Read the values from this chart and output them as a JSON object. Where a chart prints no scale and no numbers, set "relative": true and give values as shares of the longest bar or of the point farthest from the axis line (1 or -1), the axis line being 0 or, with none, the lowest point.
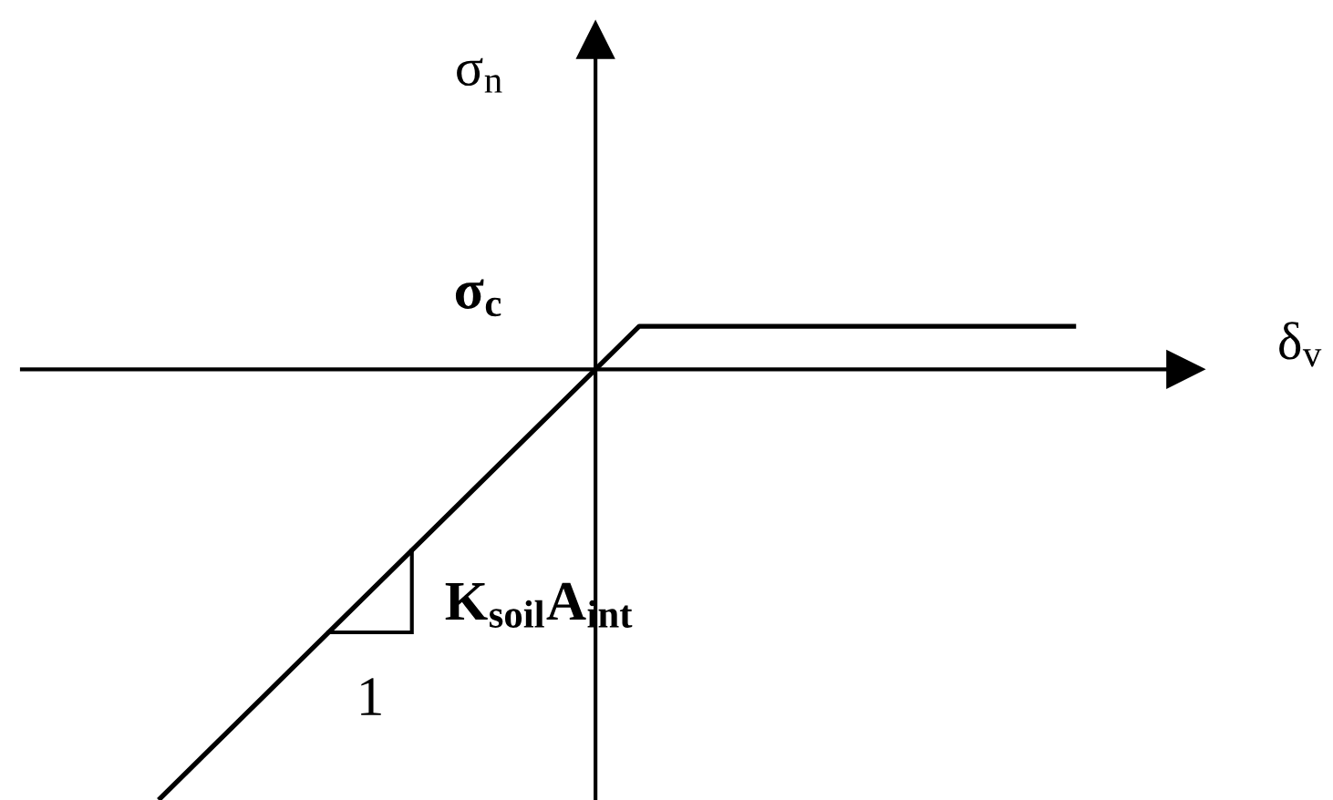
{
  "chart_data": {
    "type": "line",
    "xlabel": "δ$_{v}$",
    "ylabel": "σ$_{n}$",
    "categories": [
      null,
      null,
      null,
      null,
      null,
      null,
      null,
      null,
      null,
      null,
      null,
      null,
      null,
      null,
      null,
      null,
      null,
      null,
      null,
      null,
      null,
      null
    ],
    "values": [
      -1,
      -0.9,
      -0.8,
      -0.7,
      -0.6,
      -0.5,
      -0.4,
      -0.3,
      -0.2,
      -0.1,
      0,
      0.1,
      0.1,
      0.1,
      0.1,
      0.1,
      0.1,
      0.1,
      0.1,
      0.1,
      0.1,
      0.1
    ],
    "color": "#000000",
    "relative": true,
    "annotations": [
      "σ$_{c}$",
      "K$_{soil}$A$_{int}$",
      "1"
    ]
  }
}
